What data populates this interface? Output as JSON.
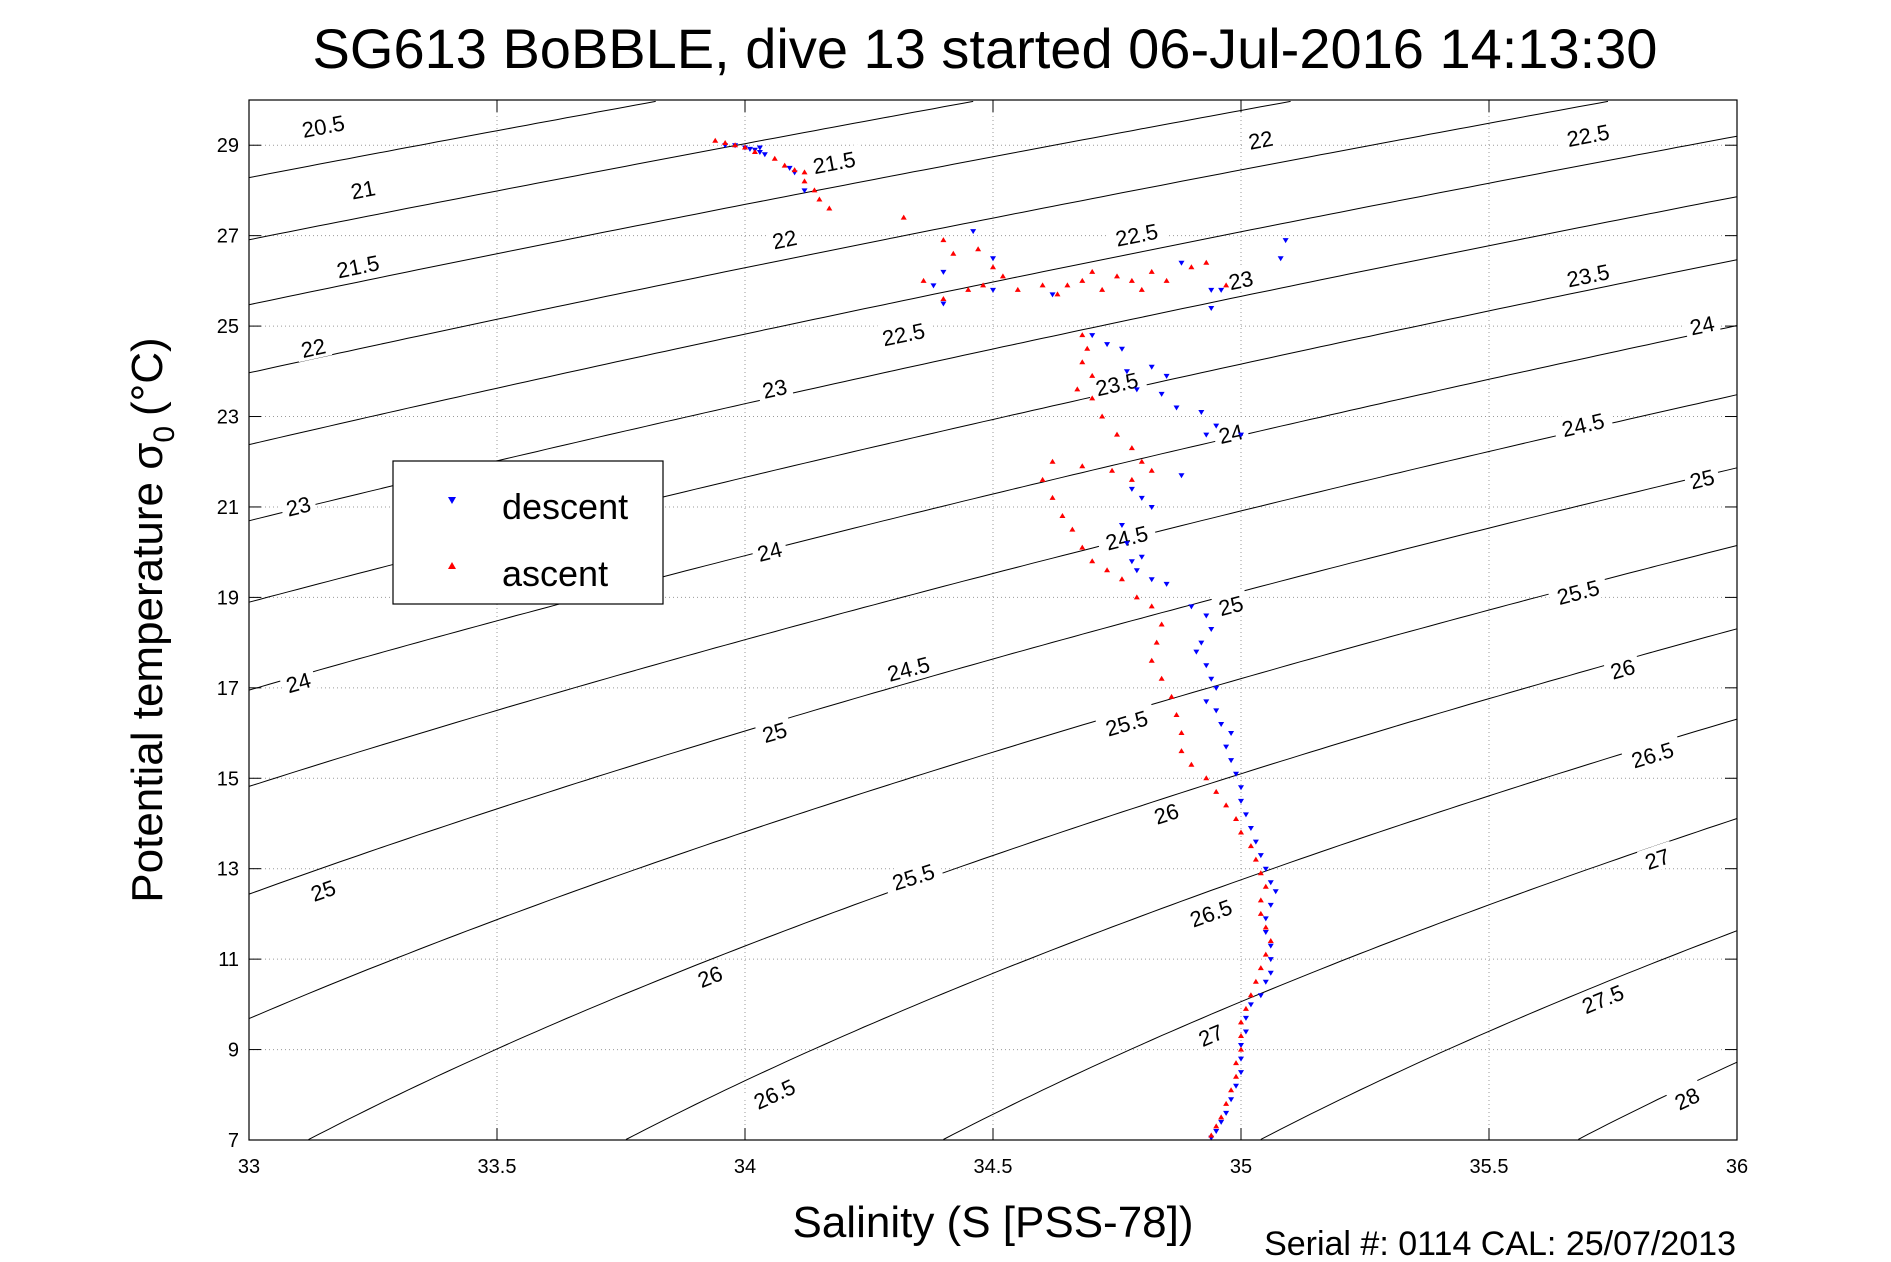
{
  "chart_data": {
    "type": "scatter",
    "title": "SG613 BoBBLE, dive 13 started 06-Jul-2016 14:13:30",
    "xlabel": "Salinity (S [PSS-78])",
    "ylabel_main": "Potential temperature σ",
    "ylabel_sub": "0",
    "ylabel_unit": "(°C)",
    "xlim": [
      33,
      36
    ],
    "ylim": [
      7,
      30
    ],
    "grid": true,
    "legend_position": "left",
    "x_ticks": [
      33,
      33.5,
      34,
      34.5,
      35,
      35.5,
      36
    ],
    "x_tick_labels": [
      "33",
      "33.5",
      "34",
      "34.5",
      "35",
      "35.5",
      "36"
    ],
    "y_ticks": [
      7,
      9,
      11,
      13,
      15,
      17,
      19,
      21,
      23,
      25,
      27,
      29
    ],
    "y_tick_labels": [
      "7",
      "9",
      "11",
      "13",
      "15",
      "17",
      "19",
      "21",
      "23",
      "25",
      "27",
      "29"
    ],
    "footer": "Serial #: 0114  CAL: 25/07/2013",
    "contours": [
      {
        "level": 20.5,
        "label": "20.5"
      },
      {
        "level": 21,
        "label": "21"
      },
      {
        "level": 21.5,
        "label": "21.5"
      },
      {
        "level": 22,
        "label": "22"
      },
      {
        "level": 22.5,
        "label": "22.5"
      },
      {
        "level": 23,
        "label": "23"
      },
      {
        "level": 23.5,
        "label": "23.5"
      },
      {
        "level": 24,
        "label": "24"
      },
      {
        "level": 24.5,
        "label": "24.5"
      },
      {
        "level": 25,
        "label": "25"
      },
      {
        "level": 25.5,
        "label": "25.5"
      },
      {
        "level": 26,
        "label": "26"
      },
      {
        "level": 26.5,
        "label": "26.5"
      },
      {
        "level": 27,
        "label": "27"
      },
      {
        "level": 27.5,
        "label": "27.5"
      },
      {
        "level": 28,
        "label": "28"
      }
    ],
    "contour_label_positions": [
      {
        "label": "20.5",
        "s": 33.15,
        "t": 29.4
      },
      {
        "label": "21",
        "s": 33.23,
        "t": 28.0
      },
      {
        "label": "21.5",
        "s": 33.22,
        "t": 26.3
      },
      {
        "label": "22",
        "s": 33.13,
        "t": 24.5
      },
      {
        "label": "23",
        "s": 33.1,
        "t": 21.0
      },
      {
        "label": "24",
        "s": 33.1,
        "t": 17.1
      },
      {
        "label": "25",
        "s": 33.15,
        "t": 12.5
      },
      {
        "label": "21.5",
        "s": 34.18,
        "t": 28.6
      },
      {
        "label": "22",
        "s": 34.08,
        "t": 26.9
      },
      {
        "label": "22.5",
        "s": 34.32,
        "t": 24.8
      },
      {
        "label": "23",
        "s": 34.06,
        "t": 23.6
      },
      {
        "label": "24",
        "s": 34.05,
        "t": 20.0
      },
      {
        "label": "24.5",
        "s": 34.33,
        "t": 17.4
      },
      {
        "label": "25",
        "s": 34.06,
        "t": 16.0
      },
      {
        "label": "25.5",
        "s": 34.34,
        "t": 12.8
      },
      {
        "label": "26",
        "s": 33.93,
        "t": 10.6
      },
      {
        "label": "26.5",
        "s": 34.06,
        "t": 8.0
      },
      {
        "label": "22.5",
        "s": 34.79,
        "t": 27.0
      },
      {
        "label": "23.5",
        "s": 34.75,
        "t": 23.7
      },
      {
        "label": "24.5",
        "s": 34.77,
        "t": 20.3
      },
      {
        "label": "25.5",
        "s": 34.77,
        "t": 16.2
      },
      {
        "label": "26",
        "s": 34.85,
        "t": 14.2
      },
      {
        "label": "26.5",
        "s": 34.94,
        "t": 12.0
      },
      {
        "label": "27",
        "s": 34.94,
        "t": 9.3
      },
      {
        "label": "22",
        "s": 35.04,
        "t": 29.1
      },
      {
        "label": "23",
        "s": 35.0,
        "t": 26.0
      },
      {
        "label": "24",
        "s": 34.98,
        "t": 22.6
      },
      {
        "label": "25",
        "s": 34.98,
        "t": 18.8
      },
      {
        "label": "22.5",
        "s": 35.7,
        "t": 29.2
      },
      {
        "label": "23.5",
        "s": 35.7,
        "t": 26.1
      },
      {
        "label": "24",
        "s": 35.93,
        "t": 25.0
      },
      {
        "label": "24.5",
        "s": 35.69,
        "t": 22.8
      },
      {
        "label": "25",
        "s": 35.93,
        "t": 21.6
      },
      {
        "label": "25.5",
        "s": 35.68,
        "t": 19.1
      },
      {
        "label": "26",
        "s": 35.77,
        "t": 17.4
      },
      {
        "label": "26.5",
        "s": 35.83,
        "t": 15.5
      },
      {
        "label": "27",
        "s": 35.84,
        "t": 13.2
      },
      {
        "label": "27.5",
        "s": 35.73,
        "t": 10.1
      },
      {
        "label": "28",
        "s": 35.9,
        "t": 7.9
      }
    ],
    "series": [
      {
        "name": "descent",
        "color": "#0000ff",
        "marker": "triangle-down",
        "points": [
          [
            33.96,
            29.0
          ],
          [
            33.98,
            29.0
          ],
          [
            34.0,
            28.95
          ],
          [
            34.02,
            28.9
          ],
          [
            34.03,
            28.85
          ],
          [
            34.04,
            28.8
          ],
          [
            34.01,
            28.92
          ],
          [
            34.03,
            28.95
          ],
          [
            34.09,
            28.5
          ],
          [
            34.1,
            28.4
          ],
          [
            34.12,
            28.0
          ],
          [
            34.46,
            27.1
          ],
          [
            35.09,
            26.9
          ],
          [
            35.08,
            26.5
          ],
          [
            34.5,
            26.5
          ],
          [
            34.4,
            26.2
          ],
          [
            34.38,
            25.9
          ],
          [
            34.4,
            25.5
          ],
          [
            34.5,
            25.8
          ],
          [
            34.62,
            25.7
          ],
          [
            34.88,
            26.4
          ],
          [
            34.96,
            25.8
          ],
          [
            34.94,
            25.8
          ],
          [
            34.94,
            25.4
          ],
          [
            34.7,
            24.8
          ],
          [
            34.73,
            24.6
          ],
          [
            34.76,
            24.5
          ],
          [
            34.77,
            24.0
          ],
          [
            34.79,
            23.6
          ],
          [
            34.82,
            24.1
          ],
          [
            34.85,
            23.9
          ],
          [
            34.84,
            23.5
          ],
          [
            34.87,
            23.2
          ],
          [
            34.92,
            23.1
          ],
          [
            34.95,
            22.8
          ],
          [
            35.0,
            22.6
          ],
          [
            34.93,
            22.6
          ],
          [
            34.88,
            21.7
          ],
          [
            34.82,
            21.0
          ],
          [
            34.8,
            21.2
          ],
          [
            34.78,
            21.4
          ],
          [
            34.76,
            20.6
          ],
          [
            34.77,
            20.2
          ],
          [
            34.78,
            19.8
          ],
          [
            34.79,
            19.6
          ],
          [
            34.8,
            19.9
          ],
          [
            34.82,
            19.4
          ],
          [
            34.85,
            19.3
          ],
          [
            34.9,
            18.8
          ],
          [
            34.93,
            18.6
          ],
          [
            34.94,
            18.3
          ],
          [
            34.92,
            18.0
          ],
          [
            34.91,
            17.8
          ],
          [
            34.93,
            17.5
          ],
          [
            34.94,
            17.2
          ],
          [
            34.95,
            17.0
          ],
          [
            34.93,
            16.7
          ],
          [
            34.95,
            16.5
          ],
          [
            34.96,
            16.2
          ],
          [
            34.98,
            16.0
          ],
          [
            34.97,
            15.7
          ],
          [
            34.98,
            15.4
          ],
          [
            34.99,
            15.1
          ],
          [
            35.0,
            14.8
          ],
          [
            35.0,
            14.5
          ],
          [
            35.01,
            14.2
          ],
          [
            35.02,
            13.9
          ],
          [
            35.03,
            13.6
          ],
          [
            35.04,
            13.3
          ],
          [
            35.05,
            13.0
          ],
          [
            35.06,
            12.7
          ],
          [
            35.07,
            12.5
          ],
          [
            35.06,
            12.2
          ],
          [
            35.05,
            11.9
          ],
          [
            35.05,
            11.6
          ],
          [
            35.06,
            11.3
          ],
          [
            35.06,
            11.0
          ],
          [
            35.06,
            10.7
          ],
          [
            35.05,
            10.5
          ],
          [
            35.04,
            10.2
          ],
          [
            35.02,
            10.0
          ],
          [
            35.01,
            9.7
          ],
          [
            35.01,
            9.4
          ],
          [
            35.0,
            9.1
          ],
          [
            35.0,
            8.8
          ],
          [
            35.0,
            8.5
          ],
          [
            34.99,
            8.2
          ],
          [
            34.98,
            7.9
          ],
          [
            34.97,
            7.6
          ],
          [
            34.96,
            7.4
          ],
          [
            34.95,
            7.2
          ],
          [
            34.94,
            7.05
          ]
        ]
      },
      {
        "name": "ascent",
        "color": "#ff0000",
        "marker": "triangle-up",
        "points": [
          [
            33.94,
            29.1
          ],
          [
            33.96,
            29.05
          ],
          [
            33.98,
            29.0
          ],
          [
            34.0,
            28.95
          ],
          [
            34.02,
            28.85
          ],
          [
            34.06,
            28.7
          ],
          [
            34.08,
            28.55
          ],
          [
            34.1,
            28.45
          ],
          [
            34.12,
            28.4
          ],
          [
            34.12,
            28.2
          ],
          [
            34.14,
            28.0
          ],
          [
            34.15,
            27.8
          ],
          [
            34.17,
            27.6
          ],
          [
            34.32,
            27.4
          ],
          [
            34.4,
            26.9
          ],
          [
            34.42,
            26.6
          ],
          [
            34.47,
            26.7
          ],
          [
            34.5,
            26.3
          ],
          [
            34.52,
            26.1
          ],
          [
            34.48,
            25.9
          ],
          [
            34.45,
            25.8
          ],
          [
            34.4,
            25.6
          ],
          [
            34.36,
            26.0
          ],
          [
            34.55,
            25.8
          ],
          [
            34.6,
            25.9
          ],
          [
            34.63,
            25.7
          ],
          [
            34.65,
            25.9
          ],
          [
            34.68,
            26.0
          ],
          [
            34.7,
            26.2
          ],
          [
            34.72,
            25.8
          ],
          [
            34.75,
            26.1
          ],
          [
            34.78,
            26.0
          ],
          [
            34.8,
            25.8
          ],
          [
            34.82,
            26.2
          ],
          [
            34.85,
            26.0
          ],
          [
            34.9,
            26.3
          ],
          [
            34.93,
            26.4
          ],
          [
            34.97,
            25.9
          ],
          [
            34.68,
            24.8
          ],
          [
            34.69,
            24.5
          ],
          [
            34.68,
            24.2
          ],
          [
            34.7,
            23.9
          ],
          [
            34.67,
            23.6
          ],
          [
            34.7,
            23.4
          ],
          [
            34.72,
            23.0
          ],
          [
            34.75,
            22.6
          ],
          [
            34.78,
            22.3
          ],
          [
            34.8,
            22.0
          ],
          [
            34.82,
            21.8
          ],
          [
            34.78,
            21.6
          ],
          [
            34.74,
            21.8
          ],
          [
            34.68,
            21.9
          ],
          [
            34.62,
            22.0
          ],
          [
            34.6,
            21.6
          ],
          [
            34.62,
            21.2
          ],
          [
            34.64,
            20.8
          ],
          [
            34.66,
            20.5
          ],
          [
            34.68,
            20.1
          ],
          [
            34.7,
            19.8
          ],
          [
            34.73,
            19.6
          ],
          [
            34.76,
            19.4
          ],
          [
            34.79,
            19.0
          ],
          [
            34.82,
            18.8
          ],
          [
            34.84,
            18.4
          ],
          [
            34.83,
            18.0
          ],
          [
            34.82,
            17.6
          ],
          [
            34.84,
            17.2
          ],
          [
            34.86,
            16.8
          ],
          [
            34.87,
            16.4
          ],
          [
            34.88,
            16.0
          ],
          [
            34.88,
            15.6
          ],
          [
            34.9,
            15.3
          ],
          [
            34.93,
            15.0
          ],
          [
            34.95,
            14.7
          ],
          [
            34.97,
            14.4
          ],
          [
            34.99,
            14.1
          ],
          [
            35.0,
            13.8
          ],
          [
            35.02,
            13.5
          ],
          [
            35.03,
            13.2
          ],
          [
            35.04,
            12.9
          ],
          [
            35.05,
            12.6
          ],
          [
            35.04,
            12.3
          ],
          [
            35.04,
            12.0
          ],
          [
            35.05,
            11.7
          ],
          [
            35.06,
            11.4
          ],
          [
            35.05,
            11.1
          ],
          [
            35.04,
            10.8
          ],
          [
            35.03,
            10.5
          ],
          [
            35.02,
            10.2
          ],
          [
            35.01,
            9.9
          ],
          [
            35.0,
            9.6
          ],
          [
            35.0,
            9.3
          ],
          [
            35.0,
            9.0
          ],
          [
            34.99,
            8.7
          ],
          [
            34.99,
            8.4
          ],
          [
            34.98,
            8.1
          ],
          [
            34.97,
            7.8
          ],
          [
            34.96,
            7.5
          ],
          [
            34.95,
            7.3
          ],
          [
            34.94,
            7.1
          ]
        ]
      }
    ]
  }
}
